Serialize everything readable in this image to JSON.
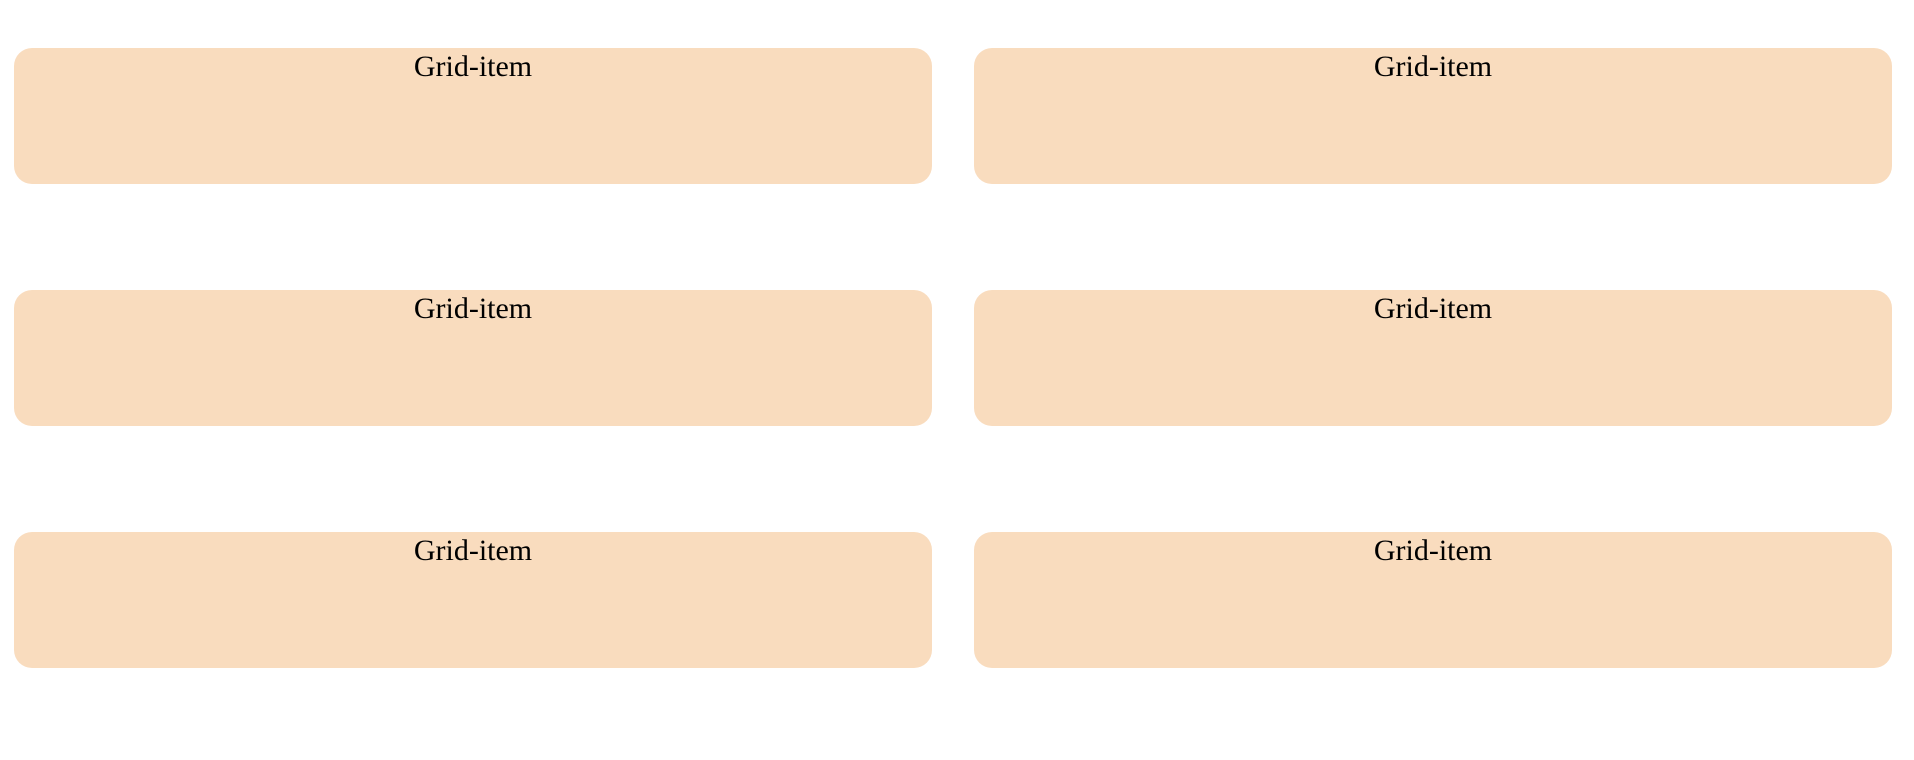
{
  "colors": {
    "page_background": "#ffffff",
    "item_background": "#f9dcbe",
    "item_text": "#000000"
  },
  "grid": {
    "items": [
      {
        "label": "Grid-item"
      },
      {
        "label": "Grid-item"
      },
      {
        "label": "Grid-item"
      },
      {
        "label": "Grid-item"
      },
      {
        "label": "Grid-item"
      },
      {
        "label": "Grid-item"
      }
    ]
  }
}
